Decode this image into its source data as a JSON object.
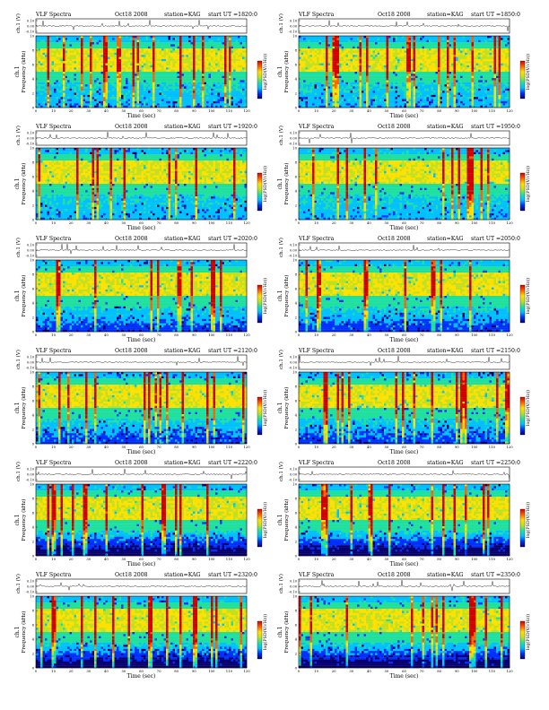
{
  "figure": {
    "header_label": "VLF Spectra",
    "date": "Oct18 2008",
    "station_label": "station=KAG",
    "start_label": "start UT",
    "waveform_ylabel": "ch.1 (V)",
    "waveform_ticks": [
      "0.10",
      "0.00",
      "-0.10"
    ],
    "freq_ylabel": "Frequency (kHz)",
    "freq_side_label": "ch.1",
    "colorbar_label": "log(PSD(V/√Hz))",
    "xlabel": "Time (sec)",
    "colorscale": [
      "#08006e",
      "#0030ff",
      "#00c0ff",
      "#20e0a0",
      "#c0e020",
      "#ffe000",
      "#ff6000",
      "#d00000",
      "#ffffff"
    ]
  },
  "chart_data": [
    {
      "type": "heatmap",
      "title": "VLF Spectra Oct18 2008 station=KAG start UT =1820:0",
      "start_ut": "=1820:0",
      "xlabel": "Time (sec)",
      "ylabel": "Frequency (kHz)",
      "xlim": [
        0,
        120
      ],
      "ylim": [
        0,
        10
      ],
      "x_ticks": [
        0,
        10,
        20,
        30,
        40,
        50,
        60,
        70,
        80,
        90,
        100,
        110,
        120
      ],
      "y_ticks": [
        0,
        2,
        4,
        6,
        8,
        10
      ],
      "waveform_ylim": [
        -0.1,
        0.1
      ]
    },
    {
      "type": "heatmap",
      "title": "VLF Spectra Oct18 2008 station=KAG start UT =1850:0",
      "start_ut": "=1850:0",
      "xlabel": "Time (sec)",
      "ylabel": "Frequency (kHz)",
      "xlim": [
        0,
        120
      ],
      "ylim": [
        0,
        10
      ],
      "x_ticks": [
        0,
        10,
        20,
        30,
        40,
        50,
        60,
        70,
        80,
        90,
        100,
        110,
        120
      ],
      "y_ticks": [
        0,
        2,
        4,
        6,
        8,
        10
      ],
      "waveform_ylim": [
        -0.1,
        0.1
      ]
    },
    {
      "type": "heatmap",
      "title": "VLF Spectra Oct18 2008 station=KAG start UT =1920:0",
      "start_ut": "=1920:0",
      "xlabel": "Time (sec)",
      "ylabel": "Frequency (kHz)",
      "xlim": [
        0,
        120
      ],
      "ylim": [
        0,
        10
      ],
      "x_ticks": [
        0,
        10,
        20,
        30,
        40,
        50,
        60,
        70,
        80,
        90,
        100,
        110,
        120
      ],
      "y_ticks": [
        0,
        2,
        4,
        6,
        8,
        10
      ],
      "waveform_ylim": [
        -0.1,
        0.1
      ]
    },
    {
      "type": "heatmap",
      "title": "VLF Spectra Oct18 2008 station=KAG start UT =1950:0",
      "start_ut": "=1950:0",
      "xlabel": "Time (sec)",
      "ylabel": "Frequency (kHz)",
      "xlim": [
        0,
        120
      ],
      "ylim": [
        0,
        10
      ],
      "x_ticks": [
        0,
        10,
        20,
        30,
        40,
        50,
        60,
        70,
        80,
        90,
        100,
        110,
        120
      ],
      "y_ticks": [
        0,
        2,
        4,
        6,
        8,
        10
      ],
      "waveform_ylim": [
        -0.1,
        0.1
      ]
    },
    {
      "type": "heatmap",
      "title": "VLF Spectra Oct18 2008 station=KAG start UT =2020:0",
      "start_ut": "=2020:0",
      "xlabel": "Time (sec)",
      "ylabel": "Frequency (kHz)",
      "xlim": [
        0,
        120
      ],
      "ylim": [
        0,
        10
      ],
      "x_ticks": [
        0,
        10,
        20,
        30,
        40,
        50,
        60,
        70,
        80,
        90,
        100,
        110,
        120
      ],
      "y_ticks": [
        0,
        2,
        4,
        6,
        8,
        10
      ],
      "waveform_ylim": [
        -0.1,
        0.1
      ]
    },
    {
      "type": "heatmap",
      "title": "VLF Spectra Oct18 2008 station=KAG start UT =2050:0",
      "start_ut": "=2050:0",
      "xlabel": "Time (sec)",
      "ylabel": "Frequency (kHz)",
      "xlim": [
        0,
        120
      ],
      "ylim": [
        0,
        10
      ],
      "x_ticks": [
        0,
        10,
        20,
        30,
        40,
        50,
        60,
        70,
        80,
        90,
        100,
        110,
        120
      ],
      "y_ticks": [
        0,
        2,
        4,
        6,
        8,
        10
      ],
      "waveform_ylim": [
        -0.1,
        0.1
      ]
    },
    {
      "type": "heatmap",
      "title": "VLF Spectra Oct18 2008 station=KAG start UT =2120:0",
      "start_ut": "=2120:0",
      "xlabel": "Time (sec)",
      "ylabel": "Frequency (kHz)",
      "xlim": [
        0,
        120
      ],
      "ylim": [
        0,
        10
      ],
      "x_ticks": [
        0,
        10,
        20,
        30,
        40,
        50,
        60,
        70,
        80,
        90,
        100,
        110,
        120
      ],
      "y_ticks": [
        0,
        2,
        4,
        6,
        8,
        10
      ],
      "waveform_ylim": [
        -0.1,
        0.1
      ]
    },
    {
      "type": "heatmap",
      "title": "VLF Spectra Oct18 2008 station=KAG start UT =2150:0",
      "start_ut": "=2150:0",
      "xlabel": "Time (sec)",
      "ylabel": "Frequency (kHz)",
      "xlim": [
        0,
        120
      ],
      "ylim": [
        0,
        10
      ],
      "x_ticks": [
        0,
        10,
        20,
        30,
        40,
        50,
        60,
        70,
        80,
        90,
        100,
        110,
        120
      ],
      "y_ticks": [
        0,
        2,
        4,
        6,
        8,
        10
      ],
      "waveform_ylim": [
        -0.1,
        0.1
      ]
    },
    {
      "type": "heatmap",
      "title": "VLF Spectra Oct18 2008 station=KAG start UT =2220:0",
      "start_ut": "=2220:0",
      "xlabel": "Time (sec)",
      "ylabel": "Frequency (kHz)",
      "xlim": [
        0,
        120
      ],
      "ylim": [
        0,
        10
      ],
      "x_ticks": [
        0,
        10,
        20,
        30,
        40,
        50,
        60,
        70,
        80,
        90,
        100,
        110,
        120
      ],
      "y_ticks": [
        0,
        2,
        4,
        6,
        8,
        10
      ],
      "waveform_ylim": [
        -0.1,
        0.1
      ]
    },
    {
      "type": "heatmap",
      "title": "VLF Spectra Oct18 2008 station=KAG start UT =2250:0",
      "start_ut": "=2250:0",
      "xlabel": "Time (sec)",
      "ylabel": "Frequency (kHz)",
      "xlim": [
        0,
        120
      ],
      "ylim": [
        0,
        10
      ],
      "x_ticks": [
        0,
        10,
        20,
        30,
        40,
        50,
        60,
        70,
        80,
        90,
        100,
        110,
        120
      ],
      "y_ticks": [
        0,
        2,
        4,
        6,
        8,
        10
      ],
      "waveform_ylim": [
        -0.1,
        0.1
      ]
    },
    {
      "type": "heatmap",
      "title": "VLF Spectra Oct18 2008 station=KAG start UT =2320:0",
      "start_ut": "=2320:0",
      "xlabel": "Time (sec)",
      "ylabel": "Frequency (kHz)",
      "xlim": [
        0,
        120
      ],
      "ylim": [
        0,
        10
      ],
      "x_ticks": [
        0,
        10,
        20,
        30,
        40,
        50,
        60,
        70,
        80,
        90,
        100,
        110,
        120
      ],
      "y_ticks": [
        0,
        2,
        4,
        6,
        8,
        10
      ],
      "waveform_ylim": [
        -0.1,
        0.1
      ]
    },
    {
      "type": "heatmap",
      "title": "VLF Spectra Oct18 2008 station=KAG start UT =2350:0",
      "start_ut": "=2350:0",
      "xlabel": "Time (sec)",
      "ylabel": "Frequency (kHz)",
      "xlim": [
        0,
        120
      ],
      "ylim": [
        0,
        10
      ],
      "x_ticks": [
        0,
        10,
        20,
        30,
        40,
        50,
        60,
        70,
        80,
        90,
        100,
        110,
        120
      ],
      "y_ticks": [
        0,
        2,
        4,
        6,
        8,
        10
      ],
      "waveform_ylim": [
        -0.1,
        0.1
      ]
    }
  ]
}
